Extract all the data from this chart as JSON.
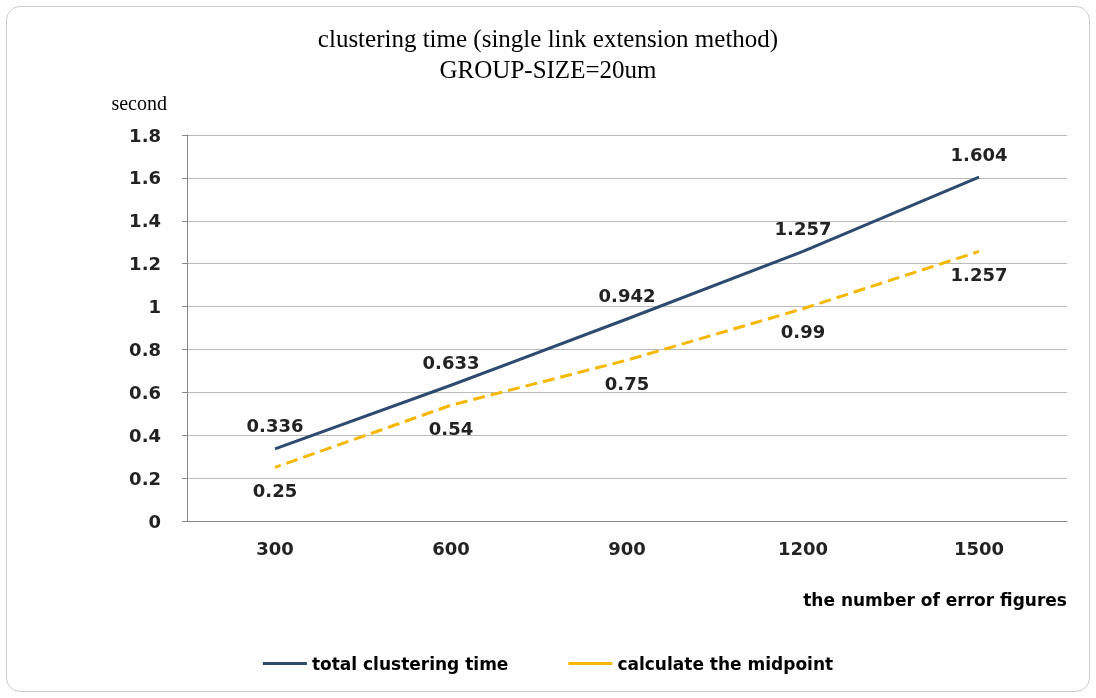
{
  "chart_data": {
    "type": "line",
    "title": "clustering time (single link extension method)",
    "subtitle": "GROUP-SIZE=20um",
    "xlabel": "the number of error figures",
    "ylabel": "second",
    "categories": [
      "300",
      "600",
      "900",
      "1200",
      "1500"
    ],
    "series": [
      {
        "name": "total clustering time",
        "color": "#2e4a6e",
        "values": [
          0.336,
          0.633,
          0.942,
          1.257,
          1.604
        ],
        "line_style": "solid"
      },
      {
        "name": "calculate the midpoint",
        "color": "#f5b800",
        "values": [
          0.25,
          0.54,
          0.75,
          0.99,
          1.257
        ],
        "line_style": "dashed"
      }
    ],
    "ylim": [
      0,
      1.8
    ],
    "yticks": [
      0,
      0.2,
      0.4,
      0.6,
      0.8,
      1,
      1.2,
      1.4,
      1.6,
      1.8
    ],
    "grid": "y",
    "legend": "bottom",
    "marker": "none",
    "data_labels": true
  }
}
